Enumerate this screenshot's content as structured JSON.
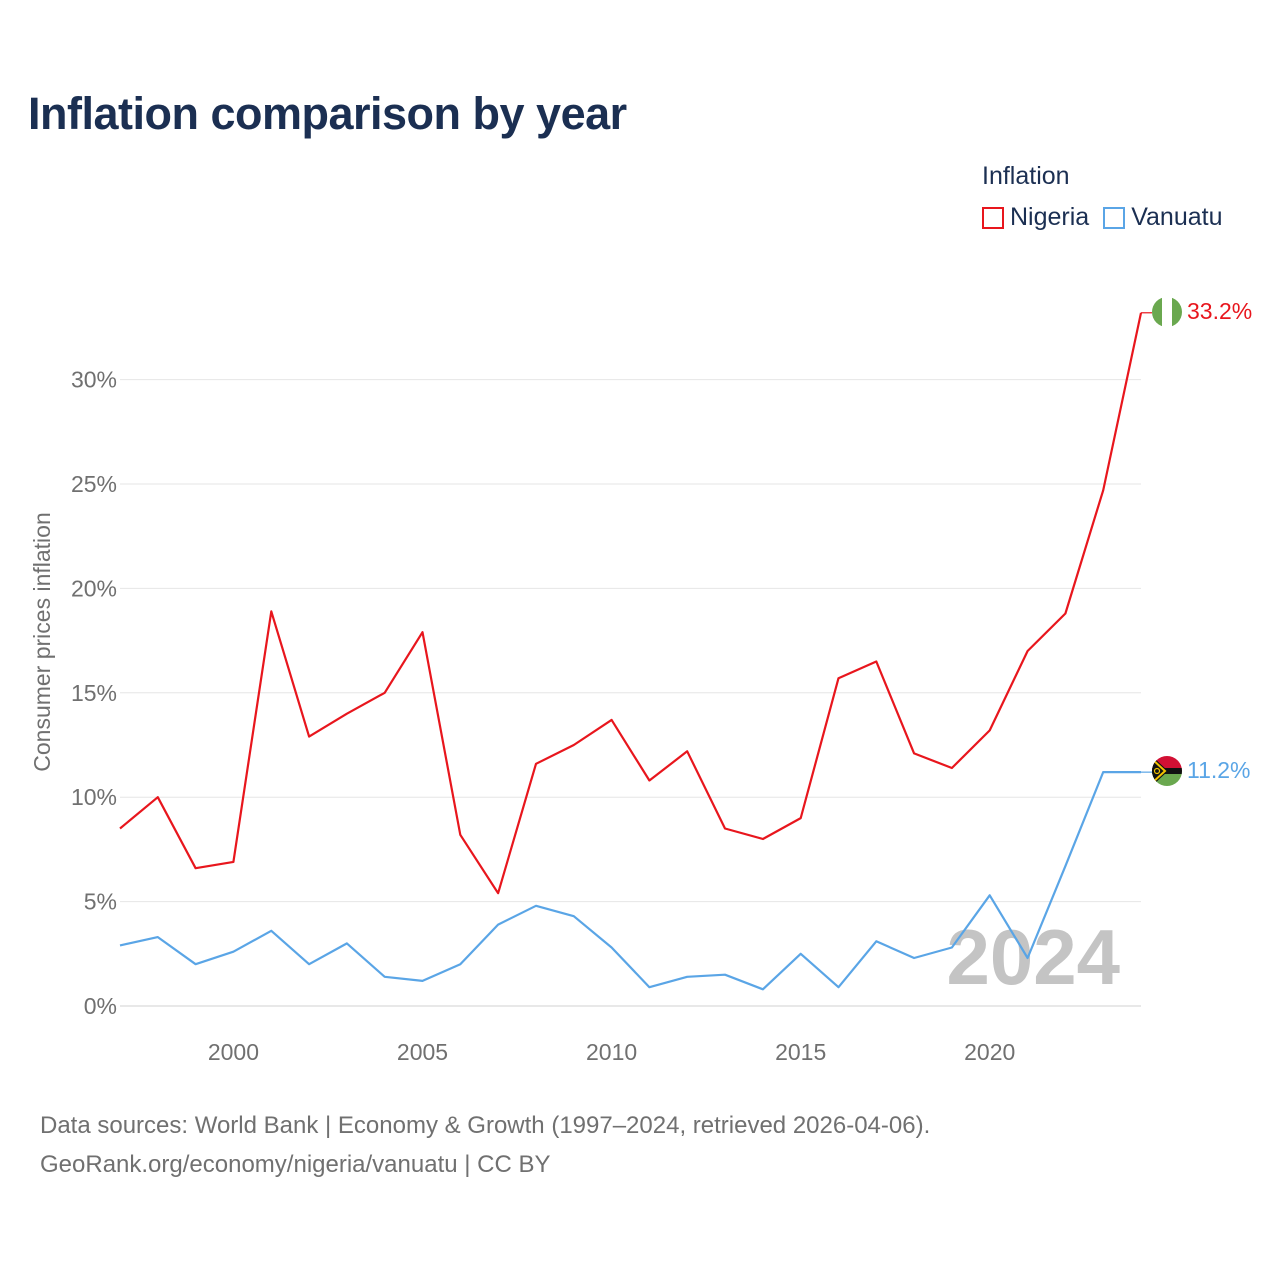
{
  "title": "Inflation comparison by year",
  "legend": {
    "title": "Inflation",
    "items": [
      {
        "label": "Nigeria",
        "color": "#e8161d"
      },
      {
        "label": "Vanuatu",
        "color": "#5aa5e6"
      }
    ]
  },
  "footer": {
    "line1": "Data sources: World Bank | Economy & Growth (1997–2024, retrieved 2026-04-06).",
    "line2": "GeoRank.org/economy/nigeria/vanuatu | CC BY"
  },
  "chart_data": {
    "type": "line",
    "title": "Inflation comparison by year",
    "xlabel": "",
    "ylabel": "Consumer prices inflation",
    "xlim": [
      1997,
      2024
    ],
    "ylim": [
      0,
      33.2
    ],
    "x_ticks": [
      2000,
      2005,
      2010,
      2015,
      2020
    ],
    "y_ticks": [
      0,
      5,
      10,
      15,
      20,
      25,
      30
    ],
    "y_tick_labels": [
      "0%",
      "5%",
      "10%",
      "15%",
      "20%",
      "25%",
      "30%"
    ],
    "watermark_year": "2024",
    "grid": true,
    "x": [
      1997,
      1998,
      1999,
      2000,
      2001,
      2002,
      2003,
      2004,
      2005,
      2006,
      2007,
      2008,
      2009,
      2010,
      2011,
      2012,
      2013,
      2014,
      2015,
      2016,
      2017,
      2018,
      2019,
      2020,
      2021,
      2022,
      2023,
      2024
    ],
    "series": [
      {
        "name": "Nigeria",
        "color": "#e8161d",
        "end_label": "33.2%",
        "flag": "nigeria-flag-icon",
        "values": [
          8.5,
          10.0,
          6.6,
          6.9,
          18.9,
          12.9,
          14.0,
          15.0,
          17.9,
          8.2,
          5.4,
          11.6,
          12.5,
          13.7,
          10.8,
          12.2,
          8.5,
          8.0,
          9.0,
          15.7,
          16.5,
          12.1,
          11.4,
          13.2,
          17.0,
          18.8,
          24.7,
          33.2
        ]
      },
      {
        "name": "Vanuatu",
        "color": "#5aa5e6",
        "end_label": "11.2%",
        "flag": "vanuatu-flag-icon",
        "values": [
          2.9,
          3.3,
          2.0,
          2.6,
          3.6,
          2.0,
          3.0,
          1.4,
          1.2,
          2.0,
          3.9,
          4.8,
          4.3,
          2.8,
          0.9,
          1.4,
          1.5,
          0.8,
          2.5,
          0.9,
          3.1,
          2.3,
          2.8,
          5.3,
          2.3,
          6.7,
          11.2,
          11.2
        ]
      }
    ]
  }
}
